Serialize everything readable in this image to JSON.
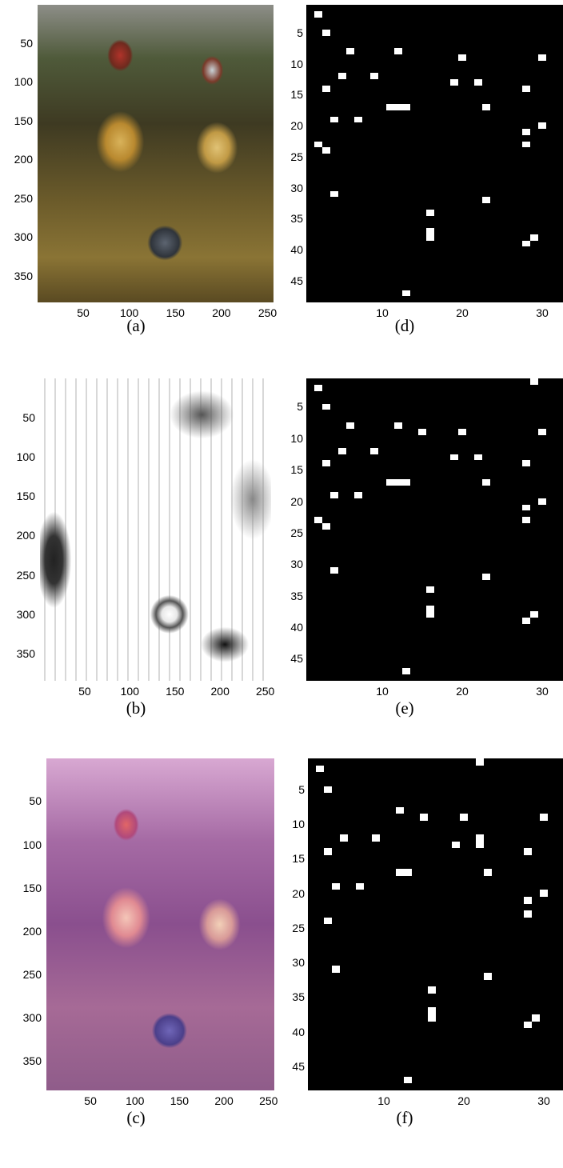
{
  "panels": [
    {
      "id": "a",
      "caption": "(a)",
      "kind": "image",
      "yticks": [
        "50",
        "100",
        "150",
        "200",
        "250",
        "300",
        "350"
      ],
      "xticks": [
        "50",
        "100",
        "150",
        "200",
        "250"
      ]
    },
    {
      "id": "b",
      "caption": "(b)",
      "kind": "image",
      "yticks": [
        "50",
        "100",
        "150",
        "200",
        "250",
        "300",
        "350"
      ],
      "xticks": [
        "50",
        "100",
        "150",
        "200",
        "250"
      ]
    },
    {
      "id": "c",
      "caption": "(c)",
      "kind": "image",
      "yticks": [
        "50",
        "100",
        "150",
        "200",
        "250",
        "300",
        "350"
      ],
      "xticks": [
        "50",
        "100",
        "150",
        "200",
        "250"
      ]
    },
    {
      "id": "d",
      "caption": "(d)",
      "kind": "heatmap",
      "yticks": [
        "5",
        "10",
        "15",
        "20",
        "25",
        "30",
        "35",
        "40",
        "45"
      ],
      "xticks": [
        "10",
        "20",
        "30"
      ]
    },
    {
      "id": "e",
      "caption": "(e)",
      "kind": "heatmap",
      "yticks": [
        "5",
        "10",
        "15",
        "20",
        "25",
        "30",
        "35",
        "40",
        "45"
      ],
      "xticks": [
        "10",
        "20",
        "30"
      ]
    },
    {
      "id": "f",
      "caption": "(f)",
      "kind": "heatmap",
      "yticks": [
        "5",
        "10",
        "15",
        "20",
        "25",
        "30",
        "35",
        "40",
        "45"
      ],
      "xticks": [
        "10",
        "20",
        "30"
      ]
    }
  ],
  "chart_data": [
    {
      "type": "heatmap",
      "panel": "d",
      "xlim": [
        0.5,
        30.5
      ],
      "ylim": [
        0.5,
        48.5
      ],
      "yaxis": "reversed",
      "colors": {
        "on": "#ffffff",
        "off": "#000000"
      },
      "cells": [
        [
          2,
          2
        ],
        [
          3,
          5
        ],
        [
          6,
          8
        ],
        [
          12,
          8
        ],
        [
          20,
          9
        ],
        [
          30,
          9
        ],
        [
          5,
          12
        ],
        [
          9,
          12
        ],
        [
          19,
          13
        ],
        [
          22,
          13
        ],
        [
          3,
          14
        ],
        [
          28,
          14
        ],
        [
          11,
          17
        ],
        [
          12,
          17
        ],
        [
          13,
          17
        ],
        [
          23,
          17
        ],
        [
          4,
          19
        ],
        [
          7,
          19
        ],
        [
          30,
          20
        ],
        [
          28,
          21
        ],
        [
          2,
          23
        ],
        [
          28,
          23
        ],
        [
          3,
          24
        ],
        [
          4,
          31
        ],
        [
          23,
          32
        ],
        [
          16,
          34
        ],
        [
          16,
          37
        ],
        [
          16,
          38
        ],
        [
          29,
          38
        ],
        [
          28,
          39
        ],
        [
          13,
          47
        ]
      ]
    },
    {
      "type": "heatmap",
      "panel": "e",
      "xlim": [
        0.5,
        30.5
      ],
      "ylim": [
        0.5,
        48.5
      ],
      "yaxis": "reversed",
      "colors": {
        "on": "#ffffff",
        "off": "#000000"
      },
      "cells": [
        [
          29,
          1
        ],
        [
          2,
          2
        ],
        [
          3,
          5
        ],
        [
          6,
          8
        ],
        [
          12,
          8
        ],
        [
          15,
          9
        ],
        [
          20,
          9
        ],
        [
          30,
          9
        ],
        [
          5,
          12
        ],
        [
          9,
          12
        ],
        [
          19,
          13
        ],
        [
          22,
          13
        ],
        [
          3,
          14
        ],
        [
          28,
          14
        ],
        [
          11,
          17
        ],
        [
          12,
          17
        ],
        [
          13,
          17
        ],
        [
          23,
          17
        ],
        [
          4,
          19
        ],
        [
          7,
          19
        ],
        [
          30,
          20
        ],
        [
          28,
          21
        ],
        [
          2,
          23
        ],
        [
          28,
          23
        ],
        [
          3,
          24
        ],
        [
          4,
          31
        ],
        [
          23,
          32
        ],
        [
          16,
          34
        ],
        [
          16,
          37
        ],
        [
          16,
          38
        ],
        [
          29,
          38
        ],
        [
          28,
          39
        ],
        [
          13,
          47
        ]
      ]
    },
    {
      "type": "heatmap",
      "panel": "f",
      "xlim": [
        0.5,
        30.5
      ],
      "ylim": [
        0.5,
        48.5
      ],
      "yaxis": "reversed",
      "colors": {
        "on": "#ffffff",
        "off": "#000000"
      },
      "cells": [
        [
          22,
          1
        ],
        [
          2,
          2
        ],
        [
          3,
          5
        ],
        [
          12,
          8
        ],
        [
          15,
          9
        ],
        [
          20,
          9
        ],
        [
          30,
          9
        ],
        [
          5,
          12
        ],
        [
          9,
          12
        ],
        [
          22,
          12
        ],
        [
          22,
          13
        ],
        [
          19,
          13
        ],
        [
          3,
          14
        ],
        [
          28,
          14
        ],
        [
          12,
          17
        ],
        [
          13,
          17
        ],
        [
          23,
          17
        ],
        [
          4,
          19
        ],
        [
          7,
          19
        ],
        [
          30,
          20
        ],
        [
          28,
          21
        ],
        [
          28,
          23
        ],
        [
          3,
          24
        ],
        [
          4,
          31
        ],
        [
          23,
          32
        ],
        [
          16,
          34
        ],
        [
          16,
          37
        ],
        [
          16,
          38
        ],
        [
          29,
          38
        ],
        [
          28,
          39
        ],
        [
          13,
          47
        ]
      ]
    }
  ]
}
